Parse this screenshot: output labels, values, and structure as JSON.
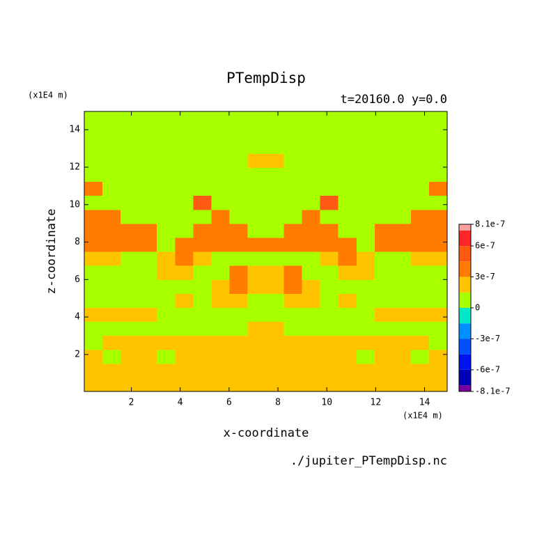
{
  "chart_data": {
    "type": "contour",
    "title": "PTempDisp",
    "subtitle": "t=20160.0 y=0.0",
    "x_label": "x-coordinate",
    "y_label": "z-coordinate",
    "x_unit": "(x1E4 m)",
    "y_unit": "(x1E4 m)",
    "source": "./jupiter_PTempDisp.nc",
    "xlim": [
      0.075,
      14.925
    ],
    "ylim": [
      0.025,
      14.975
    ],
    "xticks": [
      2,
      4,
      6,
      8,
      10,
      12,
      14
    ],
    "yticks": [
      2,
      4,
      6,
      8,
      10,
      12,
      14
    ],
    "levels": [
      -8.1e-07,
      -7.5e-07,
      -6e-07,
      -4.5e-07,
      -3e-07,
      -1.5e-07,
      0,
      1.5e-07,
      3e-07,
      4.5e-07,
      6e-07,
      7.5e-07,
      8.1e-07
    ],
    "colors": [
      "#7800a0",
      "#0000b4",
      "#0014f0",
      "#0050ff",
      "#0090ff",
      "#00e8c8",
      "#a8ff00",
      "#ffc400",
      "#ff7c00",
      "#ff5a14",
      "#ff2828",
      "#ffa0a0"
    ],
    "colorbar_ticks": [
      {
        "value": 8.1e-07,
        "label": "8.1e-7"
      },
      {
        "value": 6e-07,
        "label": "6e-7"
      },
      {
        "value": 3e-07,
        "label": "3e-7"
      },
      0,
      {
        "value": -3e-07,
        "label": "-3e-7"
      },
      {
        "value": -6e-07,
        "label": "-6e-7"
      },
      {
        "value": -8.1e-07,
        "label": "-8.1e-7"
      }
    ],
    "z": [
      [
        2.25e-07,
        2.25e-07,
        2.25e-07,
        2.25e-07,
        2.25e-07,
        2.25e-07,
        2.25e-07,
        2.25e-07,
        2.25e-07,
        2.25e-07,
        2.25e-07,
        2.25e-07,
        2.25e-07,
        2.25e-07,
        2.25e-07,
        2.25e-07,
        2.25e-07,
        2.25e-07,
        2.25e-07,
        2.25e-07
      ],
      [
        2.25e-07,
        2.25e-07,
        2.25e-07,
        2.25e-07,
        2.25e-07,
        2.25e-07,
        2.25e-07,
        2.25e-07,
        2.25e-07,
        2.25e-07,
        2.25e-07,
        2.25e-07,
        2.25e-07,
        2.25e-07,
        2.25e-07,
        2.25e-07,
        2.25e-07,
        2.25e-07,
        2.25e-07,
        2.25e-07
      ],
      [
        2.25e-07,
        7.5e-08,
        2.25e-07,
        2.25e-07,
        7.5e-08,
        2.25e-07,
        2.25e-07,
        2.25e-07,
        2.25e-07,
        2.25e-07,
        2.25e-07,
        2.25e-07,
        2.25e-07,
        2.25e-07,
        2.25e-07,
        7.5e-08,
        2.25e-07,
        2.25e-07,
        7.5e-08,
        2.25e-07
      ],
      [
        7.5e-08,
        2.25e-07,
        2.25e-07,
        2.25e-07,
        2.25e-07,
        2.25e-07,
        2.25e-07,
        2.25e-07,
        2.25e-07,
        2.25e-07,
        2.25e-07,
        2.25e-07,
        2.25e-07,
        2.25e-07,
        2.25e-07,
        2.25e-07,
        2.25e-07,
        2.25e-07,
        2.25e-07,
        7.5e-08
      ],
      [
        7.5e-08,
        7.5e-08,
        7.5e-08,
        7.5e-08,
        7.5e-08,
        7.5e-08,
        7.5e-08,
        7.5e-08,
        7.5e-08,
        2.25e-07,
        2.25e-07,
        7.5e-08,
        7.5e-08,
        7.5e-08,
        7.5e-08,
        7.5e-08,
        7.5e-08,
        7.5e-08,
        7.5e-08,
        7.5e-08
      ],
      [
        2.25e-07,
        2.25e-07,
        2.25e-07,
        2.25e-07,
        7.5e-08,
        7.5e-08,
        7.5e-08,
        7.5e-08,
        7.5e-08,
        7.5e-08,
        7.5e-08,
        7.5e-08,
        7.5e-08,
        7.5e-08,
        7.5e-08,
        7.5e-08,
        2.25e-07,
        2.25e-07,
        2.25e-07,
        2.25e-07
      ],
      [
        7.5e-08,
        7.5e-08,
        7.5e-08,
        7.5e-08,
        7.5e-08,
        2.25e-07,
        7.5e-08,
        2.25e-07,
        2.25e-07,
        7.5e-08,
        7.5e-08,
        2.25e-07,
        2.25e-07,
        7.5e-08,
        2.25e-07,
        7.5e-08,
        7.5e-08,
        7.5e-08,
        7.5e-08,
        7.5e-08
      ],
      [
        7.5e-08,
        7.5e-08,
        7.5e-08,
        7.5e-08,
        7.5e-08,
        7.5e-08,
        7.5e-08,
        2.25e-07,
        3.75e-07,
        2.25e-07,
        2.25e-07,
        3.75e-07,
        2.25e-07,
        7.5e-08,
        7.5e-08,
        7.5e-08,
        7.5e-08,
        7.5e-08,
        7.5e-08,
        7.5e-08
      ],
      [
        7.5e-08,
        7.5e-08,
        7.5e-08,
        7.5e-08,
        2.25e-07,
        2.25e-07,
        7.5e-08,
        7.5e-08,
        3.75e-07,
        2.25e-07,
        2.25e-07,
        3.75e-07,
        7.5e-08,
        7.5e-08,
        2.25e-07,
        2.25e-07,
        7.5e-08,
        7.5e-08,
        7.5e-08,
        7.5e-08
      ],
      [
        2.25e-07,
        2.25e-07,
        7.5e-08,
        7.5e-08,
        2.25e-07,
        3.75e-07,
        2.25e-07,
        7.5e-08,
        7.5e-08,
        7.5e-08,
        7.5e-08,
        7.5e-08,
        7.5e-08,
        2.25e-07,
        3.75e-07,
        2.25e-07,
        7.5e-08,
        7.5e-08,
        2.25e-07,
        2.25e-07
      ],
      [
        3.75e-07,
        3.75e-07,
        3.75e-07,
        3.75e-07,
        7.5e-08,
        3.75e-07,
        3.75e-07,
        3.75e-07,
        3.75e-07,
        3.75e-07,
        3.75e-07,
        3.75e-07,
        3.75e-07,
        3.75e-07,
        3.75e-07,
        7.5e-08,
        3.75e-07,
        3.75e-07,
        3.75e-07,
        3.75e-07
      ],
      [
        3.75e-07,
        3.75e-07,
        3.75e-07,
        3.75e-07,
        7.5e-08,
        7.5e-08,
        3.75e-07,
        3.75e-07,
        3.75e-07,
        7.5e-08,
        7.5e-08,
        3.75e-07,
        3.75e-07,
        3.75e-07,
        7.5e-08,
        7.5e-08,
        3.75e-07,
        3.75e-07,
        3.75e-07,
        3.75e-07
      ],
      [
        3.75e-07,
        3.75e-07,
        7.5e-08,
        7.5e-08,
        7.5e-08,
        7.5e-08,
        7.5e-08,
        3.75e-07,
        7.5e-08,
        7.5e-08,
        7.5e-08,
        7.5e-08,
        3.75e-07,
        7.5e-08,
        7.5e-08,
        7.5e-08,
        7.5e-08,
        7.5e-08,
        3.75e-07,
        3.75e-07
      ],
      [
        7.5e-08,
        7.5e-08,
        7.5e-08,
        7.5e-08,
        7.5e-08,
        7.5e-08,
        5.25e-07,
        7.5e-08,
        7.5e-08,
        7.5e-08,
        7.5e-08,
        7.5e-08,
        7.5e-08,
        5.25e-07,
        7.5e-08,
        7.5e-08,
        7.5e-08,
        7.5e-08,
        7.5e-08,
        7.5e-08
      ],
      [
        3.75e-07,
        7.5e-08,
        7.5e-08,
        7.5e-08,
        7.5e-08,
        7.5e-08,
        7.5e-08,
        7.5e-08,
        7.5e-08,
        7.5e-08,
        7.5e-08,
        7.5e-08,
        7.5e-08,
        7.5e-08,
        7.5e-08,
        7.5e-08,
        7.5e-08,
        7.5e-08,
        7.5e-08,
        3.75e-07
      ],
      [
        7.5e-08,
        7.5e-08,
        7.5e-08,
        7.5e-08,
        7.5e-08,
        7.5e-08,
        7.5e-08,
        7.5e-08,
        7.5e-08,
        7.5e-08,
        7.5e-08,
        7.5e-08,
        7.5e-08,
        7.5e-08,
        7.5e-08,
        7.5e-08,
        7.5e-08,
        7.5e-08,
        7.5e-08,
        7.5e-08
      ],
      [
        7.5e-08,
        7.5e-08,
        7.5e-08,
        7.5e-08,
        7.5e-08,
        7.5e-08,
        7.5e-08,
        7.5e-08,
        7.5e-08,
        2.25e-07,
        2.25e-07,
        7.5e-08,
        7.5e-08,
        7.5e-08,
        7.5e-08,
        7.5e-08,
        7.5e-08,
        7.5e-08,
        7.5e-08,
        7.5e-08
      ],
      [
        7.5e-08,
        7.5e-08,
        7.5e-08,
        7.5e-08,
        7.5e-08,
        7.5e-08,
        7.5e-08,
        7.5e-08,
        7.5e-08,
        7.5e-08,
        7.5e-08,
        7.5e-08,
        7.5e-08,
        7.5e-08,
        7.5e-08,
        7.5e-08,
        7.5e-08,
        7.5e-08,
        7.5e-08,
        7.5e-08
      ],
      [
        7.5e-08,
        7.5e-08,
        7.5e-08,
        7.5e-08,
        7.5e-08,
        7.5e-08,
        7.5e-08,
        7.5e-08,
        7.5e-08,
        7.5e-08,
        7.5e-08,
        7.5e-08,
        7.5e-08,
        7.5e-08,
        7.5e-08,
        7.5e-08,
        7.5e-08,
        7.5e-08,
        7.5e-08,
        7.5e-08
      ],
      [
        7.5e-08,
        7.5e-08,
        7.5e-08,
        7.5e-08,
        7.5e-08,
        7.5e-08,
        7.5e-08,
        7.5e-08,
        7.5e-08,
        7.5e-08,
        7.5e-08,
        7.5e-08,
        7.5e-08,
        7.5e-08,
        7.5e-08,
        7.5e-08,
        7.5e-08,
        7.5e-08,
        7.5e-08,
        7.5e-08
      ]
    ]
  }
}
